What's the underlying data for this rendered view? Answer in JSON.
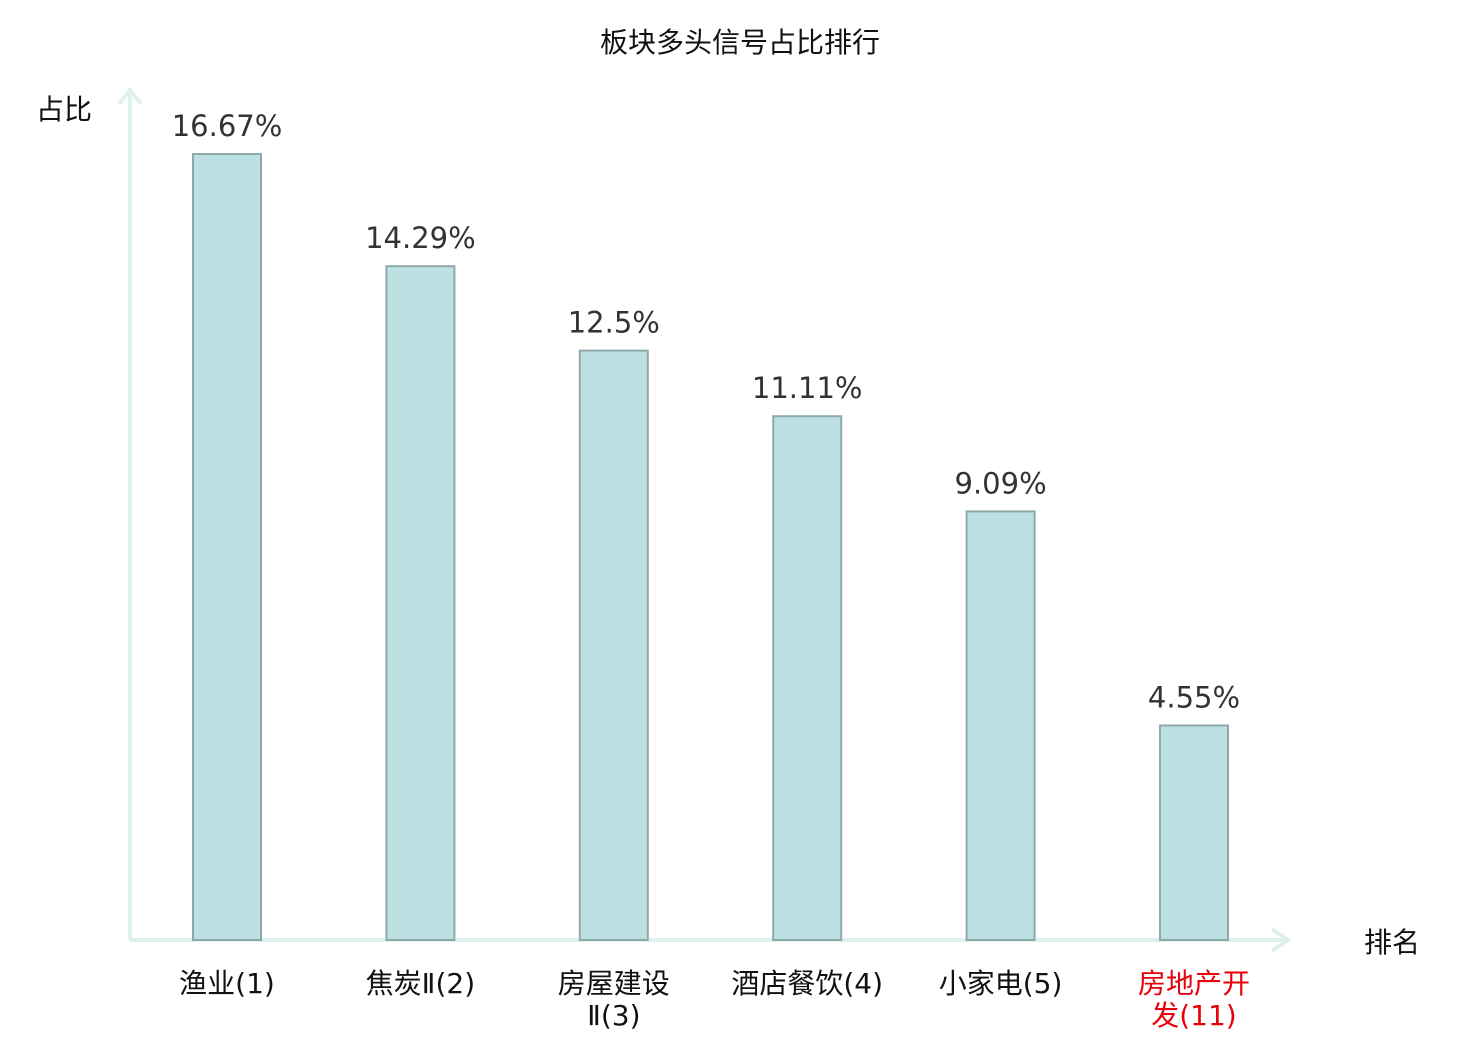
{
  "chart_data": {
    "type": "bar",
    "title": "板块多头信号占比排行",
    "xlabel": "排名",
    "ylabel": "占比",
    "categories": [
      "渔业(1)",
      "焦炭Ⅱ(2)",
      "房屋建设Ⅱ(3)",
      "酒店餐饮(4)",
      "小家电(5)",
      "房地产开发(11)"
    ],
    "category_lines": [
      [
        "渔业(1)"
      ],
      [
        "焦炭Ⅱ(2)"
      ],
      [
        "房屋建设",
        "Ⅱ(3)"
      ],
      [
        "酒店餐饮(4)"
      ],
      [
        "小家电(5)"
      ],
      [
        "房地产开",
        "发(11)"
      ]
    ],
    "values": [
      16.67,
      14.29,
      12.5,
      11.11,
      9.09,
      4.55
    ],
    "data_labels": [
      "16.67%",
      "14.29%",
      "12.5%",
      "11.11%",
      "9.09%",
      "4.55%"
    ],
    "highlight_index": 5,
    "ylim": [
      0,
      16.67
    ],
    "grid": false,
    "legend": "none",
    "colors": {
      "bar_fill": "#bde0e3",
      "bar_stroke": "#8fa9aa",
      "axis": "#ddf1ee",
      "text": "#111111",
      "value_label": "#333333",
      "highlight": "#e8000b"
    }
  }
}
